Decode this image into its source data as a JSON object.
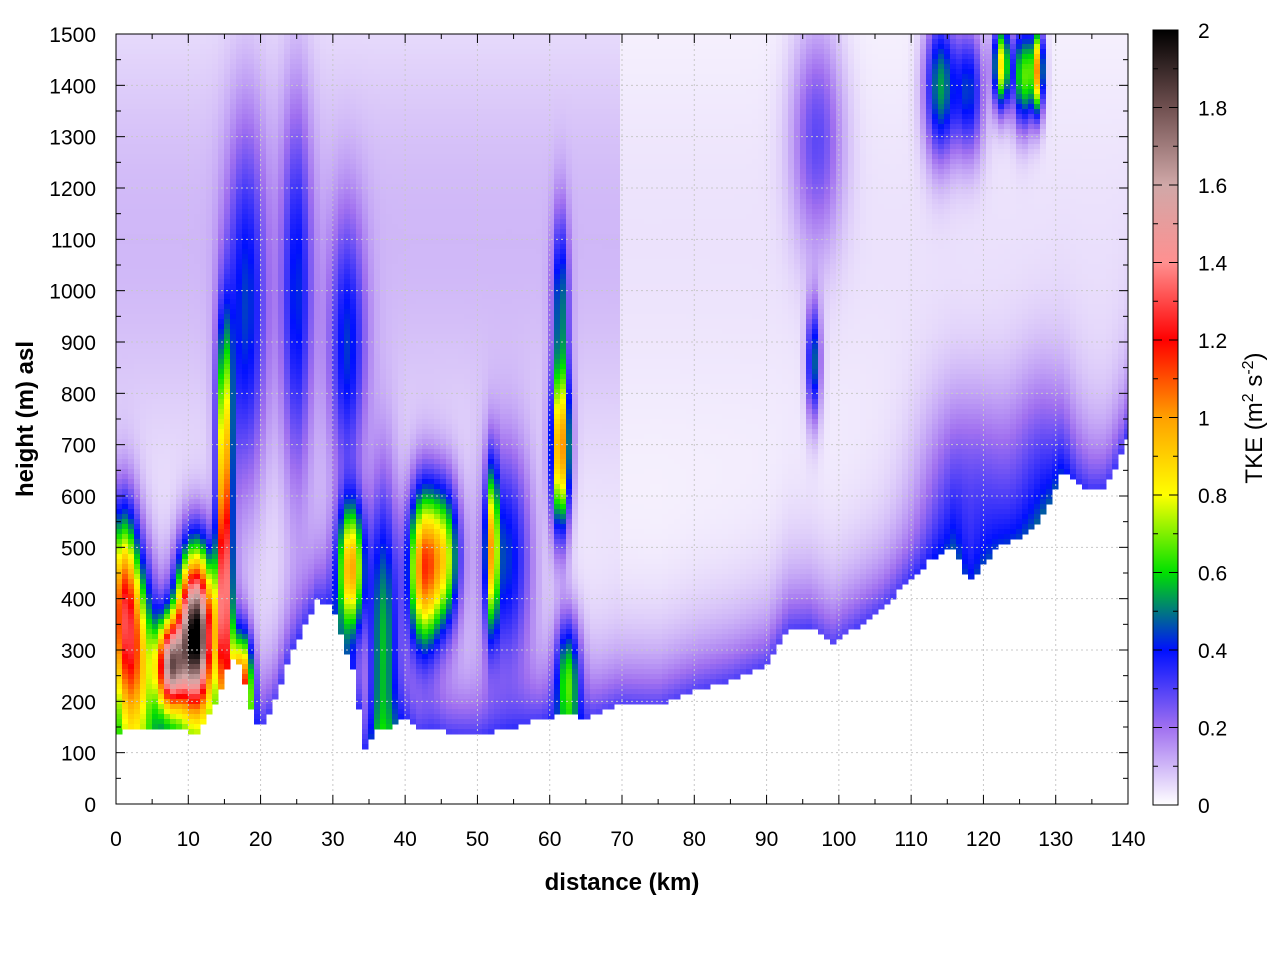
{
  "chart_data": {
    "type": "heatmap",
    "title": "",
    "xlabel": "distance (km)",
    "ylabel": "height (m) asl",
    "x_range": [
      0,
      140
    ],
    "y_range": [
      0,
      1500
    ],
    "x_ticks": [
      0,
      10,
      20,
      30,
      40,
      50,
      60,
      70,
      80,
      90,
      100,
      110,
      120,
      130,
      140
    ],
    "y_ticks": [
      0,
      100,
      200,
      300,
      400,
      500,
      600,
      700,
      800,
      900,
      1000,
      1100,
      1200,
      1300,
      1400,
      1500
    ],
    "grid": true,
    "colorbar": {
      "label_text": "TKE (m",
      "label_sup1": "2",
      "label_mid": " s",
      "label_sup2": "-2",
      "label_close": ")",
      "range": [
        0,
        2
      ],
      "ticks": [
        0,
        0.2,
        0.4,
        0.6,
        0.8,
        1,
        1.2,
        1.4,
        1.6,
        1.8,
        2
      ],
      "colormap": [
        {
          "v": 0.0,
          "color": "#ffffff"
        },
        {
          "v": 0.2,
          "color": "#a070f0"
        },
        {
          "v": 0.4,
          "color": "#0010ff"
        },
        {
          "v": 0.6,
          "color": "#00e000"
        },
        {
          "v": 0.8,
          "color": "#ffff00"
        },
        {
          "v": 1.0,
          "color": "#ffa000"
        },
        {
          "v": 1.2,
          "color": "#ff0000"
        },
        {
          "v": 1.4,
          "color": "#ff9090"
        },
        {
          "v": 1.6,
          "color": "#d0a8a8"
        },
        {
          "v": 1.8,
          "color": "#705050"
        },
        {
          "v": 2.0,
          "color": "#000000"
        }
      ]
    },
    "terrain_km_m": [
      [
        0,
        130
      ],
      [
        2,
        150
      ],
      [
        5,
        145
      ],
      [
        8,
        150
      ],
      [
        11,
        135
      ],
      [
        14,
        200
      ],
      [
        16,
        290
      ],
      [
        17.5,
        260
      ],
      [
        19,
        160
      ],
      [
        20,
        150
      ],
      [
        22,
        200
      ],
      [
        24,
        290
      ],
      [
        28,
        400
      ],
      [
        30,
        380
      ],
      [
        33,
        250
      ],
      [
        34.5,
        100
      ],
      [
        36,
        150
      ],
      [
        38,
        150
      ],
      [
        40,
        170
      ],
      [
        42,
        140
      ],
      [
        44,
        150
      ],
      [
        46,
        140
      ],
      [
        50,
        135
      ],
      [
        52,
        140
      ],
      [
        55,
        150
      ],
      [
        60,
        170
      ],
      [
        63,
        175
      ],
      [
        65,
        165
      ],
      [
        70,
        195
      ],
      [
        75,
        190
      ],
      [
        80,
        220
      ],
      [
        85,
        240
      ],
      [
        90,
        270
      ],
      [
        93,
        340
      ],
      [
        96,
        345
      ],
      [
        99,
        310
      ],
      [
        102,
        340
      ],
      [
        106,
        380
      ],
      [
        110,
        440
      ],
      [
        113,
        480
      ],
      [
        116,
        500
      ],
      [
        118,
        430
      ],
      [
        120,
        470
      ],
      [
        122,
        500
      ],
      [
        125,
        520
      ],
      [
        127,
        540
      ],
      [
        129,
        580
      ],
      [
        131,
        650
      ],
      [
        133,
        620
      ],
      [
        135,
        610
      ],
      [
        137,
        620
      ],
      [
        139,
        680
      ],
      [
        140,
        720
      ]
    ],
    "field_sources": [
      {
        "x": 2.5,
        "y": 280,
        "sx": 2.2,
        "sy": 130,
        "v": 0.85
      },
      {
        "x": 1.0,
        "y": 420,
        "sx": 1.5,
        "sy": 120,
        "v": 0.75
      },
      {
        "x": 7.5,
        "y": 270,
        "sx": 1.3,
        "sy": 60,
        "v": 1.35
      },
      {
        "x": 11.0,
        "y": 330,
        "sx": 1.8,
        "sy": 110,
        "v": 2.0
      },
      {
        "x": 15.0,
        "y": 430,
        "sx": 0.7,
        "sy": 170,
        "v": 1.3
      },
      {
        "x": 15.0,
        "y": 750,
        "sx": 0.8,
        "sy": 150,
        "v": 0.55
      },
      {
        "x": 17.5,
        "y": 230,
        "sx": 1.0,
        "sy": 70,
        "v": 0.9
      },
      {
        "x": 18.0,
        "y": 950,
        "sx": 2.0,
        "sy": 250,
        "v": 0.35
      },
      {
        "x": 25.0,
        "y": 980,
        "sx": 1.5,
        "sy": 260,
        "v": 0.33
      },
      {
        "x": 32.0,
        "y": 880,
        "sx": 1.8,
        "sy": 180,
        "v": 0.35
      },
      {
        "x": 32.5,
        "y": 460,
        "sx": 1.3,
        "sy": 90,
        "v": 0.9
      },
      {
        "x": 37.0,
        "y": 350,
        "sx": 1.5,
        "sy": 200,
        "v": 0.5
      },
      {
        "x": 42.5,
        "y": 460,
        "sx": 1.5,
        "sy": 110,
        "v": 1.0
      },
      {
        "x": 45.5,
        "y": 480,
        "sx": 1.5,
        "sy": 100,
        "v": 0.7
      },
      {
        "x": 52.0,
        "y": 500,
        "sx": 0.6,
        "sy": 110,
        "v": 0.7
      },
      {
        "x": 54.0,
        "y": 480,
        "sx": 2.5,
        "sy": 150,
        "v": 0.4
      },
      {
        "x": 61.5,
        "y": 690,
        "sx": 0.9,
        "sy": 110,
        "v": 1.0
      },
      {
        "x": 61.5,
        "y": 980,
        "sx": 0.8,
        "sy": 120,
        "v": 0.4
      },
      {
        "x": 62.5,
        "y": 250,
        "sx": 1.2,
        "sy": 80,
        "v": 0.5
      },
      {
        "x": 96.5,
        "y": 860,
        "sx": 0.7,
        "sy": 80,
        "v": 0.45
      },
      {
        "x": 97.0,
        "y": 1300,
        "sx": 2.5,
        "sy": 150,
        "v": 0.25
      },
      {
        "x": 114.0,
        "y": 1400,
        "sx": 1.5,
        "sy": 100,
        "v": 0.5
      },
      {
        "x": 118.0,
        "y": 1390,
        "sx": 1.5,
        "sy": 90,
        "v": 0.4
      },
      {
        "x": 122.5,
        "y": 1440,
        "sx": 0.8,
        "sy": 60,
        "v": 0.8
      },
      {
        "x": 125.5,
        "y": 1420,
        "sx": 1.0,
        "sy": 70,
        "v": 0.65
      },
      {
        "x": 127.5,
        "y": 1430,
        "sx": 0.6,
        "sy": 60,
        "v": 0.9
      },
      {
        "x": 118.0,
        "y": 600,
        "sx": 4.5,
        "sy": 150,
        "v": 0.22
      },
      {
        "x": 128.0,
        "y": 650,
        "sx": 3.0,
        "sy": 150,
        "v": 0.18
      }
    ]
  }
}
